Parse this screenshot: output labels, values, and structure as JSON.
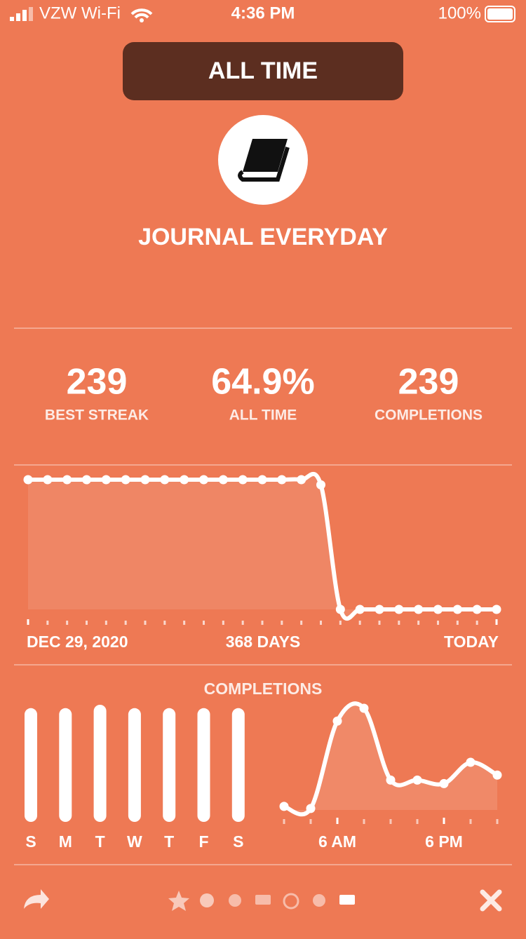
{
  "status_bar": {
    "carrier": "VZW Wi-Fi",
    "time": "4:36 PM",
    "battery": "100%"
  },
  "header": {
    "range_button": "ALL TIME",
    "habit_title": "JOURNAL EVERYDAY"
  },
  "stats": [
    {
      "value": "239",
      "label": "BEST STREAK"
    },
    {
      "value": "64.9%",
      "label": "ALL TIME"
    },
    {
      "value": "239",
      "label": "COMPLETIONS"
    }
  ],
  "streak_chart": {
    "type": "line",
    "values": [
      100,
      100,
      100,
      100,
      100,
      100,
      100,
      100,
      100,
      100,
      100,
      100,
      100,
      100,
      100,
      96,
      0,
      0,
      0,
      0,
      0,
      0,
      0,
      0,
      0
    ],
    "start_label": "DEC 29, 2020",
    "center_label": "368 DAYS",
    "end_label": "TODAY"
  },
  "completions": {
    "title": "COMPLETIONS",
    "weekday_chart": {
      "type": "bar",
      "categories": [
        "S",
        "M",
        "T",
        "W",
        "T",
        "F",
        "S"
      ],
      "values": [
        34,
        34,
        35,
        34,
        34,
        34,
        34
      ]
    },
    "hour_chart": {
      "type": "line",
      "categories": [
        null,
        null,
        "6 AM",
        null,
        null,
        null,
        "6 PM",
        null,
        null
      ],
      "values": [
        10,
        7,
        130,
        148,
        47,
        47,
        42,
        72,
        54
      ]
    }
  }
}
